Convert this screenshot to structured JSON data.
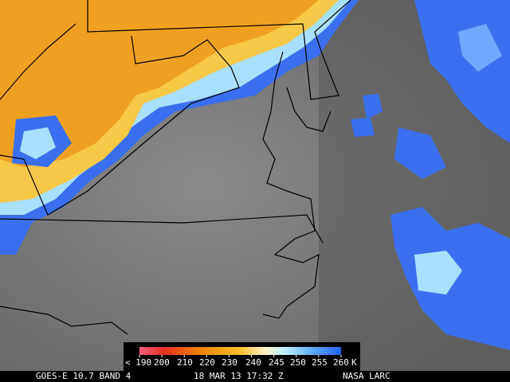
{
  "colorbar": {
    "labels": [
      "< 190",
      "200",
      "210",
      "220",
      "230",
      "240",
      "245",
      "250",
      "255",
      "260",
      "K"
    ]
  },
  "footer": {
    "satellite": "GOES-E 10.7 BAND 4",
    "datetime": "18 MAR 13 17:32 Z",
    "source": "NASA LARC"
  }
}
